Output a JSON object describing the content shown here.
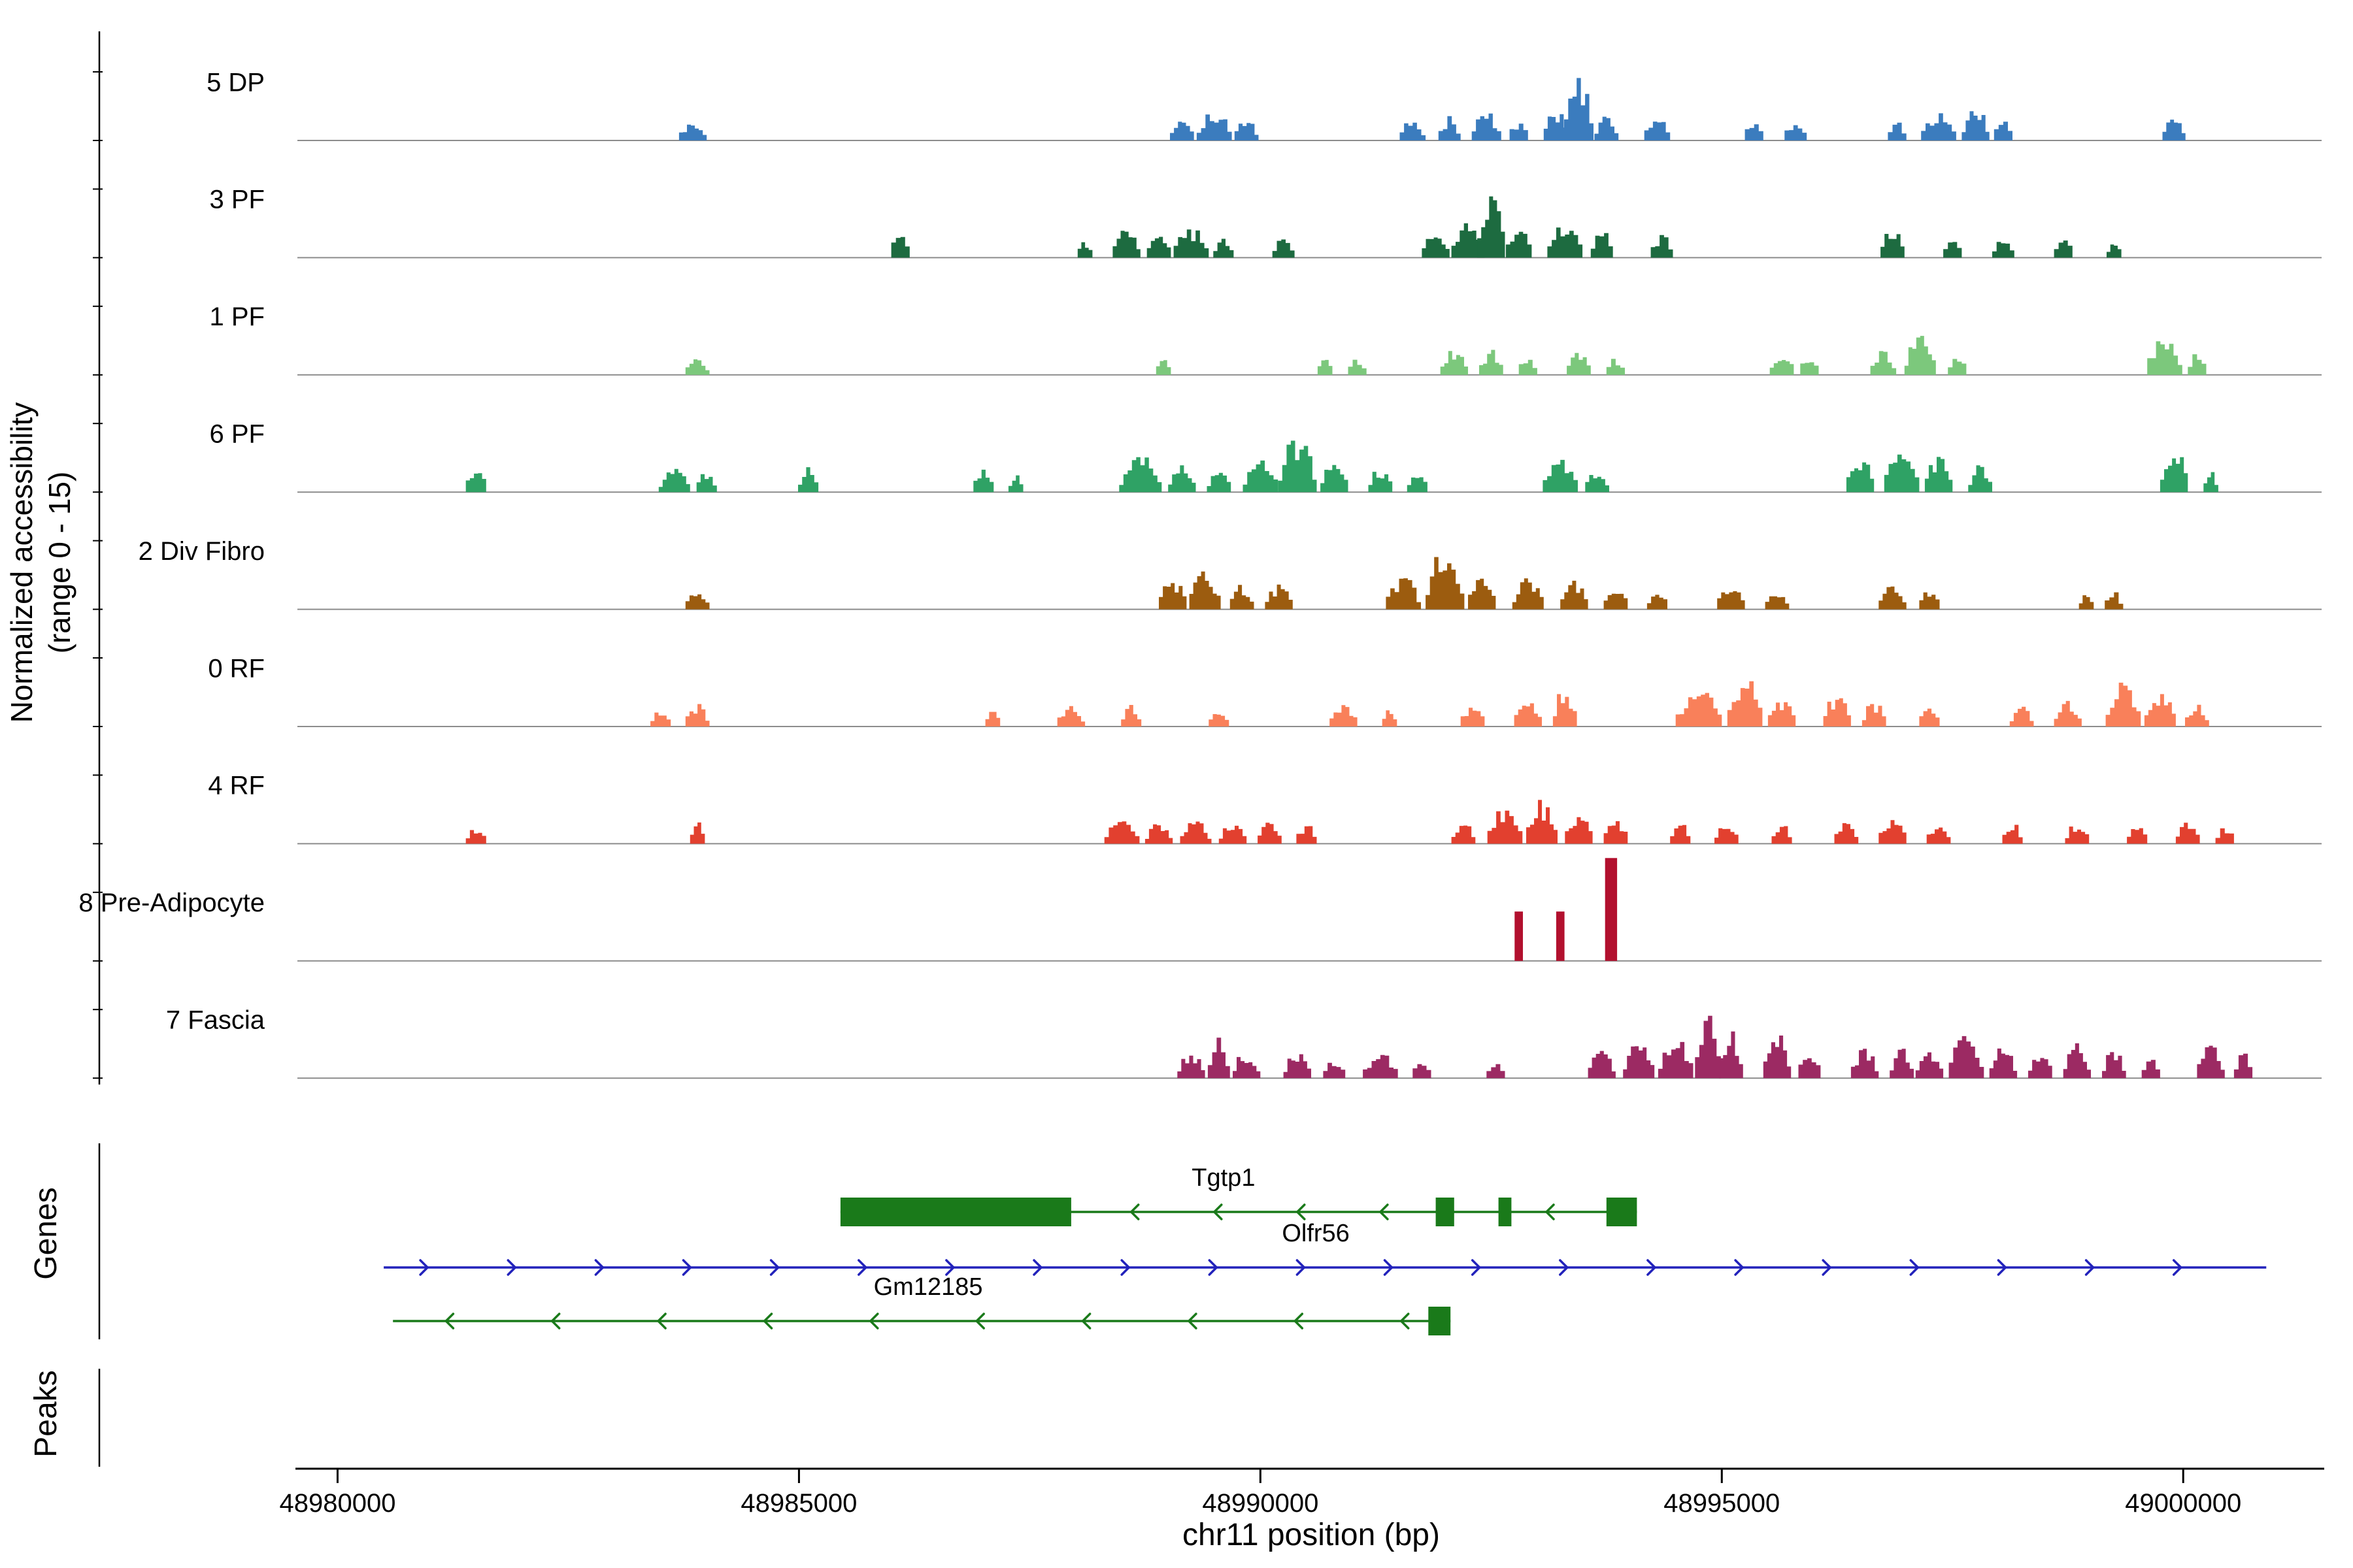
{
  "figure": {
    "y_axis_label_line1": "Normalized accessibility",
    "y_axis_label_line2": "(range 0 - 15)",
    "x_axis_label": "chr11 position (bp)",
    "genes_section_label": "Genes",
    "peaks_section_label": "Peaks",
    "background_color": "#ffffff",
    "baseline_color": "#8c8c8c",
    "axis_color": "#000000"
  },
  "chart_data": {
    "type": "area",
    "title": "",
    "x_axis": {
      "label": "chr11 position (bp)",
      "chromosome": "chr11",
      "range_bp": [
        48979600,
        49001500
      ],
      "ticks": [
        48980000,
        48985000,
        48990000,
        48995000,
        49000000
      ],
      "tick_labels": [
        "48980000",
        "48985000",
        "48990000",
        "48995000",
        "49000000"
      ]
    },
    "y_axis": {
      "label": "Normalized accessibility (range 0 - 15)",
      "range": [
        0,
        15
      ]
    },
    "tracks": [
      {
        "label": "5 DP",
        "color": "#3b7cbe",
        "render": "hills",
        "peaks": [
          [
            48983850,
            300,
            0.28
          ],
          [
            48989150,
            260,
            0.3
          ],
          [
            48989500,
            380,
            0.42
          ],
          [
            48989850,
            260,
            0.3
          ],
          [
            48991650,
            280,
            0.3
          ],
          [
            48992050,
            240,
            0.34
          ],
          [
            48992450,
            320,
            0.4
          ],
          [
            48992800,
            200,
            0.3
          ],
          [
            48993200,
            260,
            0.45
          ],
          [
            48993450,
            320,
            0.92
          ],
          [
            48993750,
            260,
            0.4
          ],
          [
            48994300,
            280,
            0.34
          ],
          [
            48995350,
            200,
            0.3
          ],
          [
            48995800,
            240,
            0.3
          ],
          [
            48996900,
            200,
            0.3
          ],
          [
            48997350,
            380,
            0.4
          ],
          [
            48997750,
            300,
            0.52
          ],
          [
            48998050,
            200,
            0.34
          ],
          [
            48999900,
            250,
            0.4
          ]
        ]
      },
      {
        "label": "3 PF",
        "color": "#1d6b40",
        "render": "hills",
        "peaks": [
          [
            48986100,
            200,
            0.38
          ],
          [
            48988100,
            160,
            0.26
          ],
          [
            48988550,
            300,
            0.4
          ],
          [
            48988900,
            260,
            0.36
          ],
          [
            48989250,
            380,
            0.44
          ],
          [
            48989600,
            220,
            0.3
          ],
          [
            48990250,
            240,
            0.3
          ],
          [
            48991900,
            300,
            0.36
          ],
          [
            48992250,
            360,
            0.55
          ],
          [
            48992500,
            300,
            0.95
          ],
          [
            48992800,
            280,
            0.52
          ],
          [
            48993300,
            380,
            0.52
          ],
          [
            48993700,
            240,
            0.4
          ],
          [
            48994350,
            240,
            0.34
          ],
          [
            48996850,
            260,
            0.42
          ],
          [
            48997500,
            200,
            0.3
          ],
          [
            48998050,
            240,
            0.3
          ],
          [
            48998700,
            200,
            0.3
          ],
          [
            48999250,
            160,
            0.26
          ]
        ]
      },
      {
        "label": "1 PF",
        "color": "#7cc87c",
        "render": "hills",
        "peaks": [
          [
            48983900,
            260,
            0.26
          ],
          [
            48988950,
            160,
            0.22
          ],
          [
            48990700,
            160,
            0.24
          ],
          [
            48991050,
            200,
            0.26
          ],
          [
            48992100,
            300,
            0.4
          ],
          [
            48992500,
            260,
            0.36
          ],
          [
            48992900,
            200,
            0.3
          ],
          [
            48993450,
            260,
            0.32
          ],
          [
            48993850,
            200,
            0.26
          ],
          [
            48995650,
            260,
            0.36
          ],
          [
            48995950,
            200,
            0.3
          ],
          [
            48996750,
            280,
            0.4
          ],
          [
            48997150,
            340,
            0.55
          ],
          [
            48997550,
            200,
            0.32
          ],
          [
            48999800,
            380,
            0.62
          ],
          [
            49000150,
            200,
            0.34
          ]
        ]
      },
      {
        "label": "6 PF",
        "color": "#2fa265",
        "render": "hills",
        "peaks": [
          [
            48981500,
            220,
            0.4
          ],
          [
            48983650,
            340,
            0.36
          ],
          [
            48984000,
            220,
            0.32
          ],
          [
            48985100,
            220,
            0.36
          ],
          [
            48987000,
            220,
            0.32
          ],
          [
            48987350,
            160,
            0.26
          ],
          [
            48988700,
            460,
            0.52
          ],
          [
            48989150,
            300,
            0.4
          ],
          [
            48989550,
            260,
            0.36
          ],
          [
            48990000,
            380,
            0.5
          ],
          [
            48990400,
            420,
            0.78
          ],
          [
            48990800,
            300,
            0.45
          ],
          [
            48991300,
            260,
            0.36
          ],
          [
            48991700,
            220,
            0.3
          ],
          [
            48993250,
            380,
            0.46
          ],
          [
            48993650,
            260,
            0.36
          ],
          [
            48996500,
            300,
            0.55
          ],
          [
            48996950,
            380,
            0.75
          ],
          [
            48997350,
            300,
            0.52
          ],
          [
            48997800,
            260,
            0.4
          ],
          [
            48999900,
            300,
            0.66
          ],
          [
            49000300,
            160,
            0.3
          ]
        ]
      },
      {
        "label": "2 Div Fibro",
        "color": "#9c5c0f",
        "render": "hills",
        "peaks": [
          [
            48983900,
            260,
            0.26
          ],
          [
            48989050,
            300,
            0.45
          ],
          [
            48989400,
            340,
            0.58
          ],
          [
            48989800,
            260,
            0.36
          ],
          [
            48990200,
            300,
            0.36
          ],
          [
            48991550,
            380,
            0.5
          ],
          [
            48992000,
            420,
            0.95
          ],
          [
            48992400,
            300,
            0.52
          ],
          [
            48992900,
            340,
            0.46
          ],
          [
            48993400,
            300,
            0.42
          ],
          [
            48993850,
            260,
            0.36
          ],
          [
            48994300,
            220,
            0.3
          ],
          [
            48995100,
            300,
            0.4
          ],
          [
            48995600,
            260,
            0.32
          ],
          [
            48996850,
            300,
            0.36
          ],
          [
            48997250,
            220,
            0.3
          ],
          [
            48998950,
            160,
            0.22
          ],
          [
            48999250,
            200,
            0.26
          ]
        ]
      },
      {
        "label": "0 RF",
        "color": "#f9805a",
        "render": "hills",
        "peaks": [
          [
            48983500,
            220,
            0.26
          ],
          [
            48983900,
            260,
            0.32
          ],
          [
            48987100,
            160,
            0.26
          ],
          [
            48987950,
            300,
            0.32
          ],
          [
            48988600,
            220,
            0.3
          ],
          [
            48989550,
            220,
            0.26
          ],
          [
            48990900,
            300,
            0.36
          ],
          [
            48991400,
            160,
            0.26
          ],
          [
            48992300,
            260,
            0.32
          ],
          [
            48992900,
            300,
            0.42
          ],
          [
            48993300,
            260,
            0.56
          ],
          [
            48994750,
            500,
            0.55
          ],
          [
            48995250,
            380,
            0.72
          ],
          [
            48995650,
            300,
            0.42
          ],
          [
            48996250,
            300,
            0.46
          ],
          [
            48996650,
            260,
            0.36
          ],
          [
            48997250,
            220,
            0.3
          ],
          [
            48998250,
            260,
            0.3
          ],
          [
            48998750,
            300,
            0.36
          ],
          [
            48999350,
            380,
            0.62
          ],
          [
            48999750,
            340,
            0.52
          ],
          [
            49000150,
            260,
            0.36
          ]
        ]
      },
      {
        "label": "4 RF",
        "color": "#e2402f",
        "render": "hills",
        "peaks": [
          [
            48981500,
            220,
            0.26
          ],
          [
            48983900,
            160,
            0.32
          ],
          [
            48988500,
            380,
            0.34
          ],
          [
            48988900,
            300,
            0.3
          ],
          [
            48989300,
            340,
            0.32
          ],
          [
            48989700,
            300,
            0.32
          ],
          [
            48990100,
            260,
            0.36
          ],
          [
            48990500,
            220,
            0.3
          ],
          [
            48992200,
            260,
            0.36
          ],
          [
            48992650,
            380,
            0.52
          ],
          [
            48993050,
            340,
            0.62
          ],
          [
            48993450,
            300,
            0.46
          ],
          [
            48993850,
            260,
            0.4
          ],
          [
            48994550,
            220,
            0.3
          ],
          [
            48995050,
            260,
            0.32
          ],
          [
            48995650,
            220,
            0.3
          ],
          [
            48996350,
            260,
            0.36
          ],
          [
            48996850,
            300,
            0.4
          ],
          [
            48997350,
            260,
            0.32
          ],
          [
            48998150,
            220,
            0.3
          ],
          [
            48998850,
            260,
            0.32
          ],
          [
            48999500,
            220,
            0.3
          ],
          [
            49000050,
            260,
            0.32
          ],
          [
            49000450,
            200,
            0.26
          ]
        ]
      },
      {
        "label": "8 Pre-Adipocyte",
        "color": "#b2102e",
        "render": "bars",
        "peaks": [
          [
            48992800,
            90,
            0.72
          ],
          [
            48993250,
            90,
            0.72
          ],
          [
            48993800,
            130,
            1.5
          ]
        ]
      },
      {
        "label": "7 Fascia",
        "color": "#9c2a63",
        "render": "hills",
        "peaks": [
          [
            48989250,
            300,
            0.36
          ],
          [
            48989550,
            240,
            0.62
          ],
          [
            48989850,
            300,
            0.4
          ],
          [
            48990400,
            300,
            0.4
          ],
          [
            48990800,
            240,
            0.3
          ],
          [
            48991300,
            380,
            0.36
          ],
          [
            48991750,
            200,
            0.3
          ],
          [
            48992550,
            200,
            0.3
          ],
          [
            48993700,
            300,
            0.4
          ],
          [
            48994100,
            340,
            0.52
          ],
          [
            48994500,
            380,
            0.6
          ],
          [
            48994850,
            280,
            0.92
          ],
          [
            48995100,
            260,
            0.7
          ],
          [
            48995600,
            300,
            0.76
          ],
          [
            48995950,
            240,
            0.42
          ],
          [
            48996550,
            300,
            0.42
          ],
          [
            48996950,
            260,
            0.42
          ],
          [
            48997250,
            300,
            0.46
          ],
          [
            48997650,
            380,
            0.62
          ],
          [
            48998050,
            300,
            0.46
          ],
          [
            48998450,
            260,
            0.4
          ],
          [
            48998850,
            300,
            0.52
          ],
          [
            48999250,
            260,
            0.42
          ],
          [
            48999650,
            200,
            0.36
          ],
          [
            49000300,
            300,
            0.52
          ],
          [
            49000650,
            200,
            0.36
          ]
        ]
      }
    ],
    "genes": [
      {
        "name": "Tgtp1",
        "color": "#1a7a1a",
        "strand": "-",
        "row": 0,
        "start": 48985450,
        "end": 48994080,
        "label_pos": 48989600,
        "arrow_spacing_bp": 900,
        "exons": [
          [
            48985450,
            48987950
          ],
          [
            48991900,
            48992100
          ],
          [
            48992580,
            48992720
          ],
          [
            48993750,
            48994080
          ]
        ]
      },
      {
        "name": "Olfr56",
        "color": "#2222bb",
        "strand": "+",
        "row": 1,
        "start": 48980500,
        "end": 49000900,
        "label_pos": 48990600,
        "arrow_spacing_bp": 950,
        "exons": []
      },
      {
        "name": "Gm12185",
        "color": "#1a7a1a",
        "strand": "-",
        "row": 2,
        "start": 48980600,
        "end": 48992060,
        "label_pos": 48986400,
        "arrow_spacing_bp": 1150,
        "exons": [
          [
            48991820,
            48992060
          ]
        ]
      }
    ],
    "peaks_track": {
      "label": "Peaks",
      "items": []
    },
    "layout_hints": {
      "grid": false,
      "legend": "none",
      "tracks_stacked": true
    }
  }
}
